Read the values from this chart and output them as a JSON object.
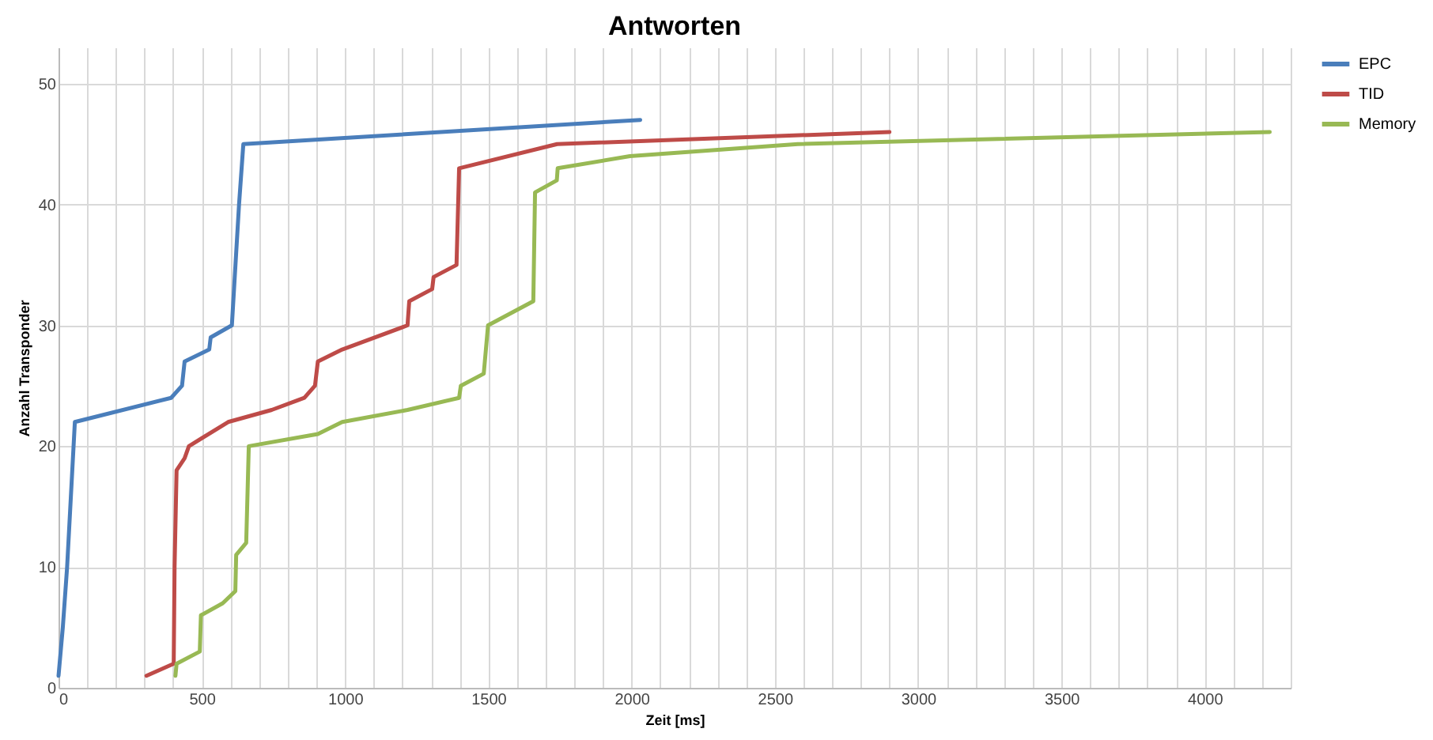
{
  "chart_data": {
    "type": "line",
    "title": "Antworten",
    "xlabel": "Zeit [ms]",
    "ylabel": "Anzahl Transponder",
    "xlim": [
      0,
      4300
    ],
    "xticks": [
      0,
      {
        "value": 100,
        "label": null
      },
      {
        "value": 200,
        "label": null
      },
      {
        "value": 300,
        "label": null
      },
      {
        "value": 400,
        "label": null
      },
      500,
      {
        "value": 600,
        "label": null
      },
      {
        "value": 700,
        "label": null
      },
      {
        "value": 800,
        "label": null
      },
      {
        "value": 900,
        "label": null
      },
      1000,
      {
        "value": 1100,
        "label": null
      },
      {
        "value": 1200,
        "label": null
      },
      {
        "value": 1300,
        "label": null
      },
      {
        "value": 1400,
        "label": null
      },
      1500,
      {
        "value": 1600,
        "label": null
      },
      {
        "value": 1700,
        "label": null
      },
      {
        "value": 1800,
        "label": null
      },
      {
        "value": 1900,
        "label": null
      },
      2000,
      {
        "value": 2100,
        "label": null
      },
      {
        "value": 2200,
        "label": null
      },
      {
        "value": 2300,
        "label": null
      },
      {
        "value": 2400,
        "label": null
      },
      2500,
      {
        "value": 2600,
        "label": null
      },
      {
        "value": 2700,
        "label": null
      },
      {
        "value": 2800,
        "label": null
      },
      {
        "value": 2900,
        "label": null
      },
      3000,
      {
        "value": 3100,
        "label": null
      },
      {
        "value": 3200,
        "label": null
      },
      {
        "value": 3300,
        "label": null
      },
      {
        "value": 3400,
        "label": null
      },
      3500,
      {
        "value": 3600,
        "label": null
      },
      {
        "value": 3700,
        "label": null
      },
      {
        "value": 3800,
        "label": null
      },
      {
        "value": 3900,
        "label": null
      },
      4000,
      {
        "value": 4100,
        "label": null
      },
      {
        "value": 4200,
        "label": null
      },
      {
        "value": 4300,
        "label": null
      }
    ],
    "ylim": [
      0,
      53
    ],
    "yticks": [
      0,
      10,
      20,
      30,
      40,
      50
    ],
    "grid": true,
    "legend": "right",
    "marker": "none",
    "line_style": "solid",
    "series": [
      {
        "name": "EPC",
        "color": "#4a7ebb",
        "x": [
          0,
          15,
          30,
          57,
          393,
          431,
          440,
          526,
          531,
          605,
          630,
          645,
          2030
        ],
        "values": [
          1,
          5,
          10,
          22,
          24,
          25,
          27,
          28,
          29,
          30,
          40,
          45,
          47
        ]
      },
      {
        "name": "TID",
        "color": "#be4b48",
        "x": [
          307,
          402,
          405,
          412,
          440,
          455,
          592,
          744,
          858,
          895,
          905,
          990,
          1218,
          1224,
          1304,
          1309,
          1389,
          1398,
          1740,
          2900
        ],
        "values": [
          1,
          2,
          10,
          18,
          19,
          20,
          22,
          23,
          24,
          25,
          27,
          28,
          30,
          32,
          33,
          34,
          35,
          43,
          45,
          46
        ]
      },
      {
        "name": "Memory",
        "color": "#98b954",
        "x": [
          408,
          412,
          493,
          497,
          573,
          617,
          620,
          655,
          664,
          905,
          990,
          1218,
          1398,
          1404,
          1484,
          1499,
          1657,
          1663,
          1739,
          1742,
          1994,
          2580,
          4227
        ],
        "values": [
          1,
          2,
          3,
          6,
          7,
          8,
          11,
          12,
          20,
          21,
          22,
          23,
          24,
          25,
          26,
          30,
          32,
          41,
          42,
          43,
          44,
          45,
          46
        ]
      }
    ]
  }
}
